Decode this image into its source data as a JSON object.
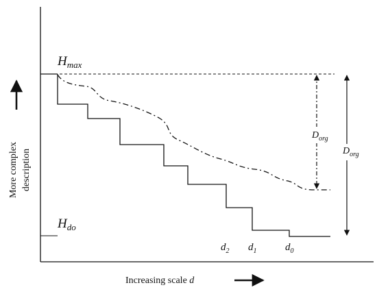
{
  "labels": {
    "h_max": {
      "base": "H",
      "sub": "max"
    },
    "h_do": {
      "base": "H",
      "sub": "do"
    },
    "d_org_inner": {
      "base": "D",
      "sub": "org"
    },
    "d_org_outer": {
      "base": "D",
      "sub": "org"
    },
    "d2": {
      "base": "d",
      "sub": "2"
    },
    "d1": {
      "base": "d",
      "sub": "1"
    },
    "d0": {
      "base": "d",
      "sub": "0"
    },
    "y_axis_line1": "More complex",
    "y_axis_line2": "description",
    "x_axis_prefix": "Increasing scale ",
    "x_axis_var": "d"
  },
  "colors": {
    "ink": "#111111"
  }
}
